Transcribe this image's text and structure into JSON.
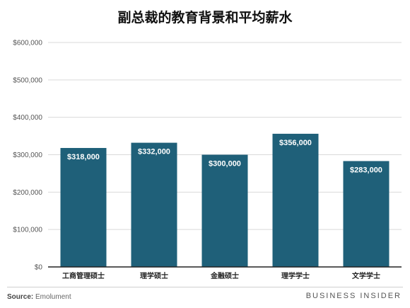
{
  "chart_data": {
    "type": "bar",
    "title": "副总裁的教育背景和平均薪水",
    "categories": [
      "工商管理硕士",
      "理学硕士",
      "金融硕士",
      "理学学士",
      "文学学士"
    ],
    "values": [
      318000,
      332000,
      300000,
      356000,
      283000
    ],
    "value_labels": [
      "$318,000",
      "$332,000",
      "$300,000",
      "$356,000",
      "$283,000"
    ],
    "ylim": [
      0,
      600000
    ],
    "yticks": [
      0,
      100000,
      200000,
      300000,
      400000,
      500000,
      600000
    ],
    "ytick_labels": [
      "$0",
      "$100,000",
      "$200,000",
      "$300,000",
      "$400,000",
      "$500,000",
      "$600,000"
    ],
    "xlabel": "",
    "ylabel": "",
    "grid": true,
    "colors": {
      "bar": "#1f6079",
      "grid": "#d9d9d9",
      "axis": "#222222"
    }
  },
  "footer": {
    "source_label": "Source:",
    "source_value": "Emolument",
    "brand": "BUSINESS INSIDER"
  }
}
